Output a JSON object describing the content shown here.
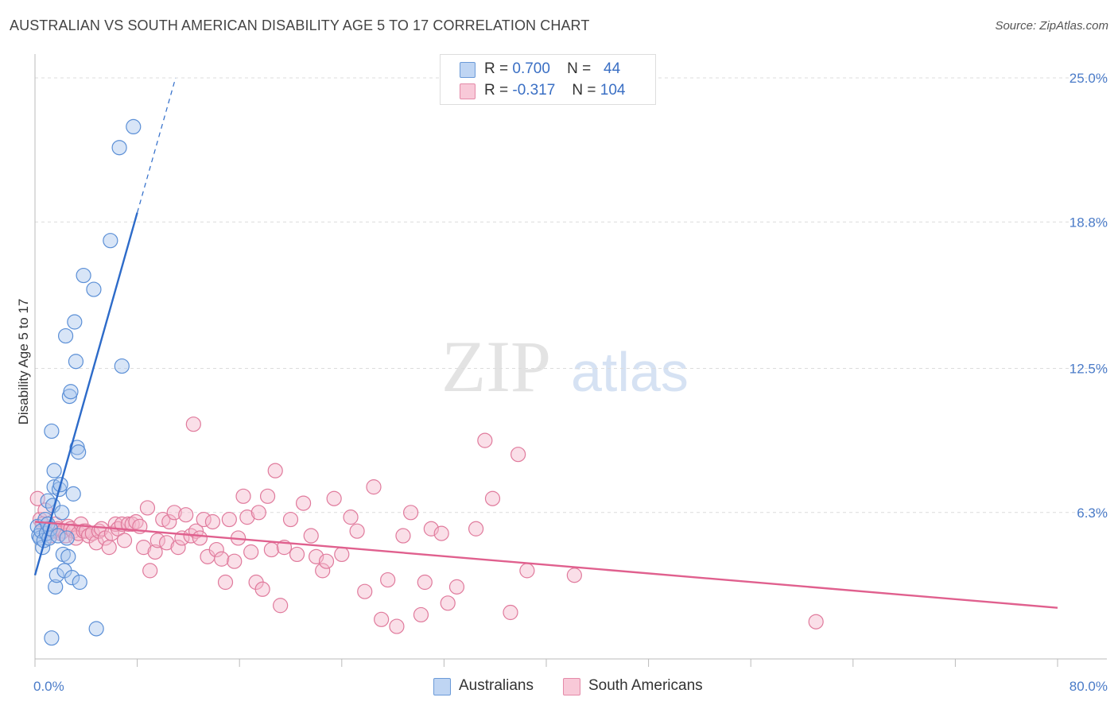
{
  "header": {
    "title": "AUSTRALIAN VS SOUTH AMERICAN DISABILITY AGE 5 TO 17 CORRELATION CHART",
    "source": "Source: ZipAtlas.com"
  },
  "watermark": {
    "zip": "ZIP",
    "atlas": "atlas"
  },
  "legend_top": {
    "rows": [
      {
        "r_label": "R =",
        "r_value": "0.700",
        "n_label": "N =",
        "n_value": "44"
      },
      {
        "r_label": "R =",
        "r_value": "-0.317",
        "n_label": "N =",
        "n_value": "104"
      }
    ]
  },
  "legend_bottom": {
    "items": [
      {
        "label": "Australians"
      },
      {
        "label": "South Americans"
      }
    ]
  },
  "chart_data": {
    "type": "scatter",
    "title": "AUSTRALIAN VS SOUTH AMERICAN DISABILITY AGE 5 TO 17 CORRELATION CHART",
    "xlabel": "",
    "ylabel": "Disability Age 5 to 17",
    "xlim": [
      0,
      80
    ],
    "ylim": [
      0,
      25
    ],
    "x_tick_labels": [
      "0.0%",
      "80.0%"
    ],
    "y_ticks": [
      6.3,
      12.5,
      18.8,
      25.0
    ],
    "y_tick_labels": [
      "6.3%",
      "12.5%",
      "18.8%",
      "25.0%"
    ],
    "grid": true,
    "colors": {
      "Australians": "#a8c6ee",
      "Australians_edge": "#5b8fd6",
      "Australians_line": "#2d6bc9",
      "South Americans": "#f5b8cc",
      "South Americans_edge": "#e07a9c",
      "South Americans_line": "#e0608e",
      "tick_text": "#4a7bc8",
      "grid": "#dcdcdc"
    },
    "series": [
      {
        "name": "Australians",
        "r": 0.7,
        "n": 44,
        "trend": {
          "x": [
            0,
            8
          ],
          "y": [
            3.6,
            19.2
          ],
          "dashed_to": {
            "x": 11,
            "y": 25.0
          }
        },
        "points": [
          [
            0.2,
            5.7
          ],
          [
            0.3,
            5.3
          ],
          [
            0.4,
            5.2
          ],
          [
            0.5,
            5.5
          ],
          [
            0.6,
            4.8
          ],
          [
            0.7,
            5.1
          ],
          [
            0.8,
            6.0
          ],
          [
            0.9,
            5.4
          ],
          [
            1.0,
            5.8
          ],
          [
            1.0,
            6.8
          ],
          [
            1.1,
            5.2
          ],
          [
            1.2,
            5.6
          ],
          [
            1.3,
            9.8
          ],
          [
            1.4,
            6.6
          ],
          [
            1.5,
            7.4
          ],
          [
            1.5,
            8.1
          ],
          [
            1.6,
            3.1
          ],
          [
            1.7,
            3.6
          ],
          [
            1.8,
            5.3
          ],
          [
            1.9,
            7.3
          ],
          [
            2.0,
            7.5
          ],
          [
            2.1,
            6.3
          ],
          [
            2.2,
            4.5
          ],
          [
            2.3,
            3.8
          ],
          [
            2.4,
            13.9
          ],
          [
            2.5,
            5.2
          ],
          [
            2.6,
            4.4
          ],
          [
            2.7,
            11.3
          ],
          [
            2.8,
            11.5
          ],
          [
            2.9,
            3.5
          ],
          [
            3.0,
            7.1
          ],
          [
            3.1,
            14.5
          ],
          [
            3.2,
            12.8
          ],
          [
            3.3,
            9.1
          ],
          [
            3.4,
            8.9
          ],
          [
            3.5,
            3.3
          ],
          [
            3.8,
            16.5
          ],
          [
            4.6,
            15.9
          ],
          [
            4.8,
            1.3
          ],
          [
            5.9,
            18.0
          ],
          [
            6.6,
            22.0
          ],
          [
            6.8,
            12.6
          ],
          [
            7.7,
            22.9
          ],
          [
            1.3,
            0.9
          ]
        ]
      },
      {
        "name": "South Americans",
        "r": -0.317,
        "n": 104,
        "trend": {
          "x": [
            0,
            80
          ],
          "y": [
            5.9,
            2.2
          ]
        },
        "points": [
          [
            0.2,
            6.9
          ],
          [
            0.4,
            6.0
          ],
          [
            0.6,
            5.8
          ],
          [
            0.8,
            6.4
          ],
          [
            1.0,
            5.6
          ],
          [
            1.2,
            5.3
          ],
          [
            1.4,
            5.5
          ],
          [
            1.6,
            5.8
          ],
          [
            1.8,
            5.6
          ],
          [
            2.0,
            5.4
          ],
          [
            2.2,
            5.5
          ],
          [
            2.4,
            5.3
          ],
          [
            2.6,
            5.7
          ],
          [
            2.8,
            5.6
          ],
          [
            3.0,
            5.5
          ],
          [
            3.2,
            5.2
          ],
          [
            3.4,
            5.4
          ],
          [
            3.6,
            5.8
          ],
          [
            3.8,
            5.5
          ],
          [
            4.0,
            5.5
          ],
          [
            4.2,
            5.3
          ],
          [
            4.5,
            5.4
          ],
          [
            4.8,
            5.0
          ],
          [
            5.0,
            5.5
          ],
          [
            5.2,
            5.6
          ],
          [
            5.5,
            5.2
          ],
          [
            5.8,
            4.8
          ],
          [
            6.0,
            5.4
          ],
          [
            6.3,
            5.8
          ],
          [
            6.5,
            5.6
          ],
          [
            6.8,
            5.8
          ],
          [
            7.0,
            5.1
          ],
          [
            7.3,
            5.8
          ],
          [
            7.6,
            5.8
          ],
          [
            7.9,
            5.9
          ],
          [
            8.2,
            5.7
          ],
          [
            8.5,
            4.8
          ],
          [
            8.8,
            6.5
          ],
          [
            9.0,
            3.8
          ],
          [
            9.4,
            4.6
          ],
          [
            9.6,
            5.1
          ],
          [
            10.0,
            6.0
          ],
          [
            10.3,
            5.0
          ],
          [
            10.5,
            5.9
          ],
          [
            10.9,
            6.3
          ],
          [
            11.2,
            4.8
          ],
          [
            11.5,
            5.2
          ],
          [
            11.8,
            6.2
          ],
          [
            12.2,
            5.3
          ],
          [
            12.4,
            10.1
          ],
          [
            12.6,
            5.5
          ],
          [
            12.9,
            5.2
          ],
          [
            13.2,
            6.0
          ],
          [
            13.5,
            4.4
          ],
          [
            13.9,
            5.9
          ],
          [
            14.2,
            4.7
          ],
          [
            14.6,
            4.3
          ],
          [
            14.9,
            3.3
          ],
          [
            15.2,
            6.0
          ],
          [
            15.6,
            4.2
          ],
          [
            15.9,
            5.2
          ],
          [
            16.3,
            7.0
          ],
          [
            16.6,
            6.1
          ],
          [
            16.9,
            4.6
          ],
          [
            17.3,
            3.3
          ],
          [
            17.5,
            6.3
          ],
          [
            17.8,
            3.0
          ],
          [
            18.2,
            7.0
          ],
          [
            18.5,
            4.7
          ],
          [
            18.8,
            8.1
          ],
          [
            19.2,
            2.3
          ],
          [
            19.5,
            4.8
          ],
          [
            20.0,
            6.0
          ],
          [
            20.5,
            4.5
          ],
          [
            21.0,
            6.7
          ],
          [
            21.6,
            5.3
          ],
          [
            22.0,
            4.4
          ],
          [
            22.5,
            3.8
          ],
          [
            22.8,
            4.2
          ],
          [
            23.4,
            6.9
          ],
          [
            24.0,
            4.5
          ],
          [
            24.7,
            6.1
          ],
          [
            25.2,
            5.5
          ],
          [
            25.8,
            2.9
          ],
          [
            26.5,
            7.4
          ],
          [
            27.1,
            1.7
          ],
          [
            27.6,
            3.4
          ],
          [
            28.3,
            1.4
          ],
          [
            28.8,
            5.3
          ],
          [
            29.4,
            6.3
          ],
          [
            30.2,
            1.9
          ],
          [
            30.5,
            3.3
          ],
          [
            31.0,
            5.6
          ],
          [
            31.8,
            5.4
          ],
          [
            32.3,
            2.4
          ],
          [
            33.0,
            3.1
          ],
          [
            34.5,
            5.6
          ],
          [
            35.2,
            9.4
          ],
          [
            35.8,
            6.9
          ],
          [
            37.2,
            2.0
          ],
          [
            37.8,
            8.8
          ],
          [
            38.5,
            3.8
          ],
          [
            42.2,
            3.6
          ],
          [
            61.1,
            1.6
          ]
        ]
      }
    ]
  }
}
